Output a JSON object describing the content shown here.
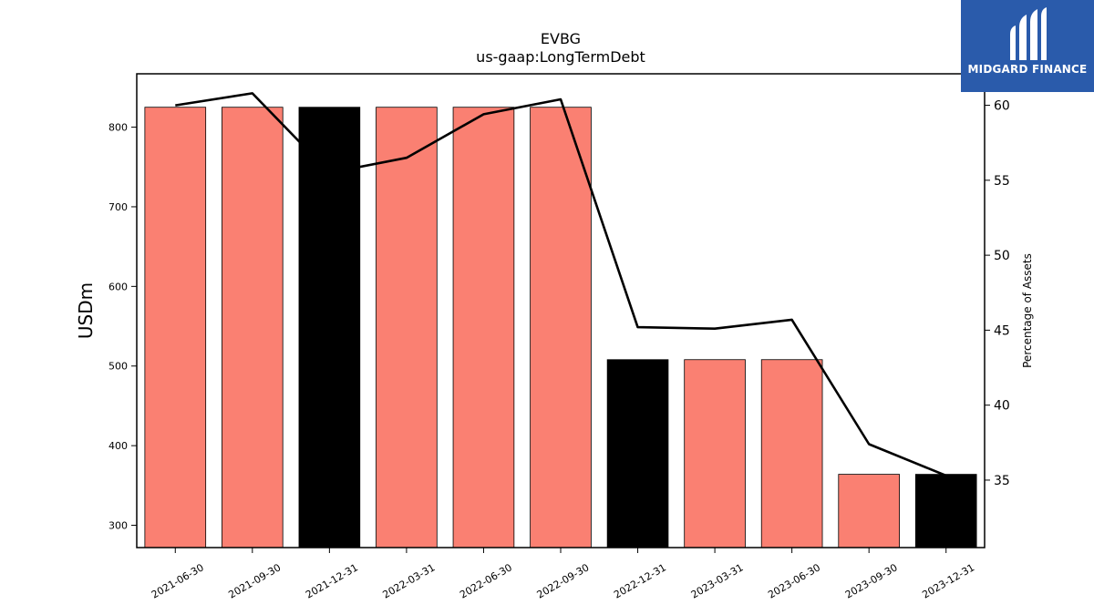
{
  "chart_data": {
    "type": "bar",
    "title": "EVBG",
    "subtitle": "us-gaap:LongTermDebt",
    "ylabel": "USDm",
    "y2label": "Percentage of Assets",
    "categories": [
      "2021-06-30",
      "2021-09-30",
      "2021-12-31",
      "2022-03-31",
      "2022-06-30",
      "2022-09-30",
      "2022-12-31",
      "2023-03-31",
      "2023-06-30",
      "2023-09-30",
      "2023-12-31"
    ],
    "values": [
      825,
      825,
      825,
      825,
      825,
      825,
      508,
      508,
      508,
      364,
      364
    ],
    "bar_colors": [
      "#fa8072",
      "#fa8072",
      "#000000",
      "#fa8072",
      "#fa8072",
      "#fa8072",
      "#000000",
      "#fa8072",
      "#fa8072",
      "#fa8072",
      "#000000"
    ],
    "line": {
      "values": [
        60.0,
        60.8,
        55.5,
        56.5,
        59.4,
        60.4,
        45.2,
        45.1,
        45.7,
        37.4,
        35.3
      ],
      "color": "#000000"
    },
    "ylim": [
      272,
      867
    ],
    "y2lim": [
      30.5,
      62.1
    ],
    "yticks": [
      300,
      400,
      500,
      600,
      700,
      800
    ],
    "y2ticks": [
      35,
      40,
      45,
      50,
      55,
      60
    ],
    "grid": false
  },
  "logo": {
    "text": "MIDGARD FINANCE",
    "icon": "midgard-logo-icon",
    "background": "#2a5bab"
  }
}
